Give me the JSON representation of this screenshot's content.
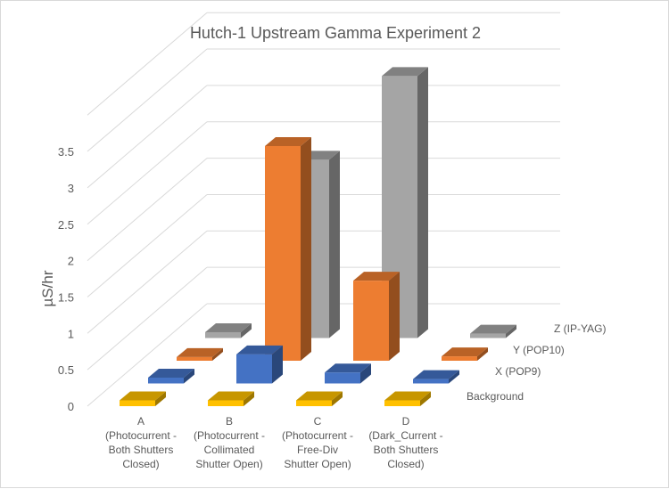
{
  "chart_data": {
    "type": "bar",
    "subtype": "3d-column",
    "title": "Hutch-1 Upstream Gamma Experiment 2",
    "ylabel": "µS/hr",
    "xlabel": "",
    "ylim": [
      0,
      3.5
    ],
    "yticks": [
      "0",
      "0.5",
      "1",
      "1.5",
      "2",
      "2.5",
      "3",
      "3.5"
    ],
    "grid": true,
    "legend": "none",
    "categories": [
      [
        "A",
        "(Photocurrent -",
        "Both Shutters",
        "Closed)"
      ],
      [
        "B",
        "(Photocurrent -",
        "Collimated",
        "Shutter Open)"
      ],
      [
        "C",
        "(Photocurrent -",
        "Free-Div",
        "Shutter Open)"
      ],
      [
        "D",
        "(Dark_Current -",
        "Both Shutters",
        "Closed)"
      ]
    ],
    "series": [
      {
        "name": "Background",
        "color": "#ffc000",
        "values": [
          0.08,
          0.08,
          0.08,
          0.08
        ]
      },
      {
        "name": "X (POP9)",
        "color": "#4472c4",
        "values": [
          0.08,
          0.4,
          0.15,
          0.06
        ]
      },
      {
        "name": "Y (POP10)",
        "color": "#ed7d31",
        "values": [
          0.05,
          2.95,
          1.1,
          0.06
        ]
      },
      {
        "name": "Z (IP-YAG)",
        "color": "#a5a5a5",
        "values": [
          0.08,
          2.45,
          3.6,
          0.06
        ]
      }
    ]
  }
}
